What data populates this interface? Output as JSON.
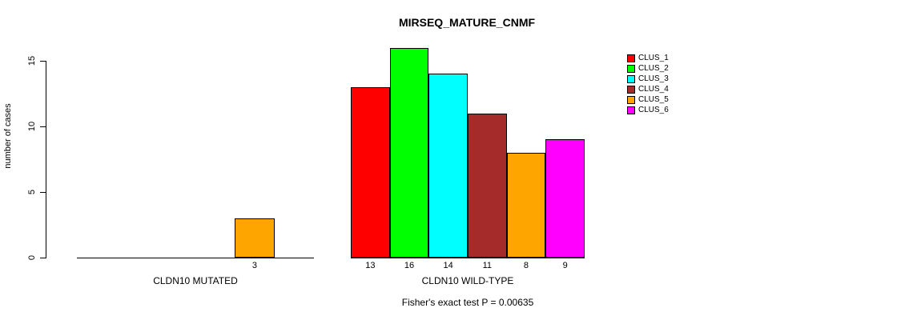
{
  "chart_data": {
    "type": "bar",
    "title": "MIRSEQ_MATURE_CNMF",
    "ylabel": "number of cases",
    "xlabel": "",
    "ylim": [
      0,
      16.5
    ],
    "yticks": [
      0,
      5,
      10,
      15
    ],
    "grid": false,
    "legend_position": "top-right",
    "series_labels": [
      "CLUS_1",
      "CLUS_2",
      "CLUS_3",
      "CLUS_4",
      "CLUS_5",
      "CLUS_6"
    ],
    "series_colors": [
      "#FF0000",
      "#00FF00",
      "#00FFFF",
      "#A52A2A",
      "#FFA500",
      "#FF00FF"
    ],
    "groups": [
      {
        "label": "CLDN10 MUTATED",
        "values": [
          0,
          0,
          0,
          0,
          3,
          0
        ]
      },
      {
        "label": "CLDN10 WILD-TYPE",
        "values": [
          13,
          16,
          14,
          11,
          8,
          9
        ]
      }
    ],
    "annotation": "Fisher's exact test P = 0.00635"
  }
}
